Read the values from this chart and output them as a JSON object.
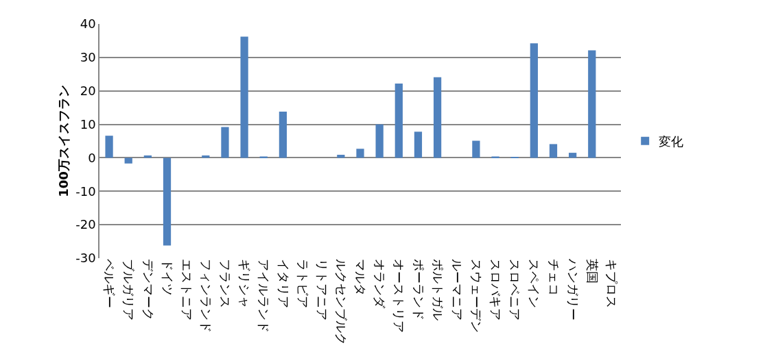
{
  "chart_data": {
    "type": "bar",
    "ylabel": "100万スイスフラン",
    "categories": [
      "ベルギー",
      "ブルガリア",
      "デンマーク",
      "ドイツ",
      "エストニア",
      "フィンランド",
      "フランス",
      "ギリシャ",
      "アイルランド",
      "イタリア",
      "ラトビア",
      "リトアニア",
      "ルクセンブルク",
      "マルタ",
      "オランダ",
      "オーストリア",
      "ポーランド",
      "ポルトガル",
      "ルーマニア",
      "スウェーデン",
      "スロバキア",
      "スロベニア",
      "スペイン",
      "チェコ",
      "ハンガリー",
      "英国",
      "キプロス"
    ],
    "series": [
      {
        "name": "変化",
        "color": "#4f81bd",
        "values": [
          6.6,
          -1.7,
          0.7,
          -26.2,
          0,
          0.7,
          9.2,
          36.2,
          0.4,
          13.8,
          0,
          0,
          0.9,
          2.7,
          10,
          22.2,
          7.8,
          24.1,
          0,
          5.1,
          0.4,
          0.2,
          34.2,
          4.1,
          1.5,
          32.1,
          0
        ]
      }
    ],
    "ylim": [
      -30,
      40
    ],
    "yticks": [
      -30,
      -20,
      -10,
      0,
      10,
      20,
      30,
      40
    ],
    "grid": "y",
    "legend": "right"
  }
}
